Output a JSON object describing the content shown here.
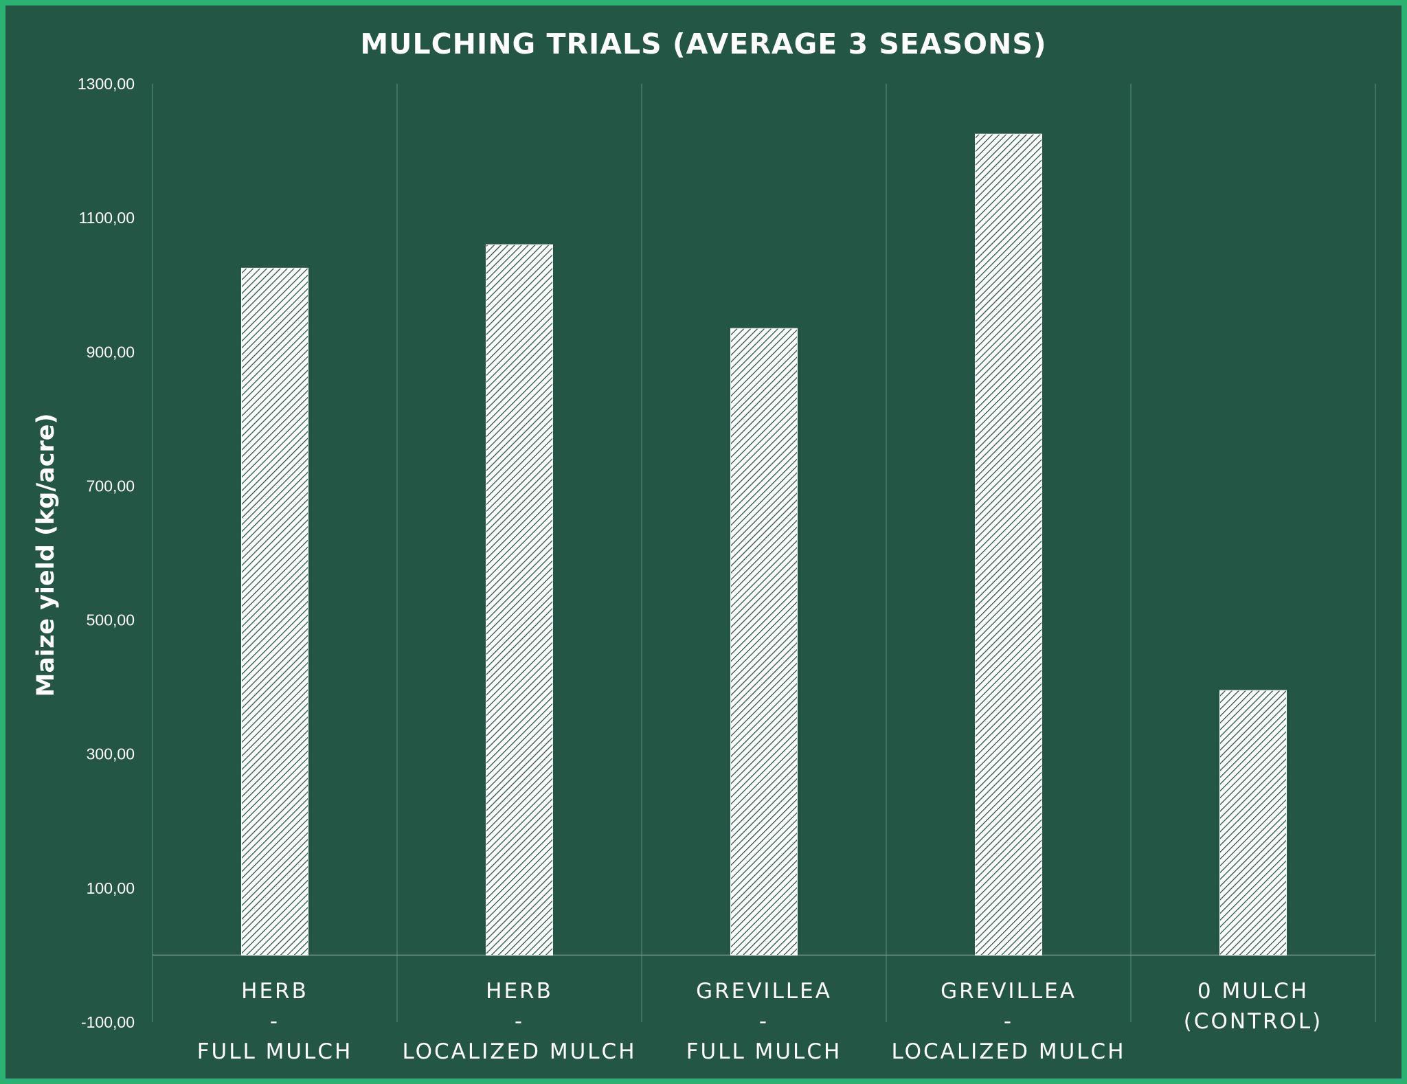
{
  "colors": {
    "border": "#2bb273",
    "background": "#245645",
    "bar_fill": "#ffffff",
    "bar_hatch": "#245645",
    "text": "#ffffff"
  },
  "chart_data": {
    "type": "bar",
    "title": "MULCHING TRIALS (AVERAGE 3 SEASONS)",
    "ylabel": "Maize yield (kg/acre)",
    "xlabel": "",
    "ylim": [
      -100,
      1300
    ],
    "yticks": [
      "-100,00",
      "100,00",
      "300,00",
      "500,00",
      "700,00",
      "900,00",
      "1100,00",
      "1300,00"
    ],
    "categories": [
      [
        "HERB",
        "-",
        "FULL MULCH"
      ],
      [
        "HERB",
        "-",
        "LOCALIZED MULCH"
      ],
      [
        "GREVILLEA",
        "-",
        "FULL MULCH"
      ],
      [
        "GREVILLEA",
        "-",
        "LOCALIZED MULCH"
      ],
      [
        "0 MULCH",
        "(CONTROL)"
      ]
    ],
    "values": [
      1025,
      1060,
      935,
      1225,
      395
    ],
    "bar_pattern": "diagonal-hatch",
    "grid": "vertical category separators",
    "legend": "none"
  }
}
